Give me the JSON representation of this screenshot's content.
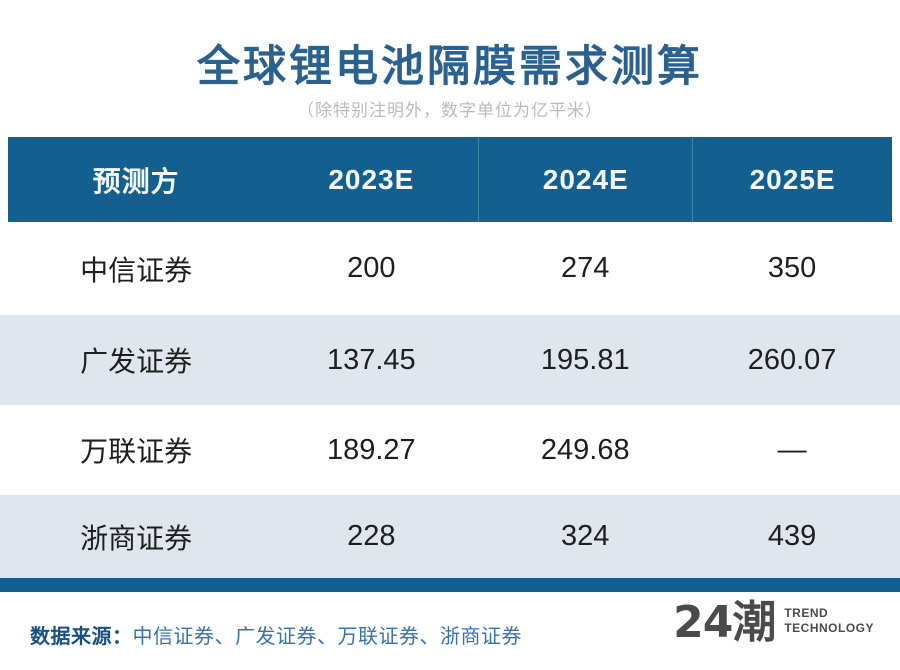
{
  "title": "全球锂电池隔膜需求测算",
  "subtitle": "（除特别注明外，数字单位为亿平米）",
  "table": {
    "headers": [
      "预测方",
      "2023E",
      "2024E",
      "2025E"
    ],
    "rows": [
      {
        "name": "中信证券",
        "values": [
          "200",
          "274",
          "350"
        ]
      },
      {
        "name": "广发证券",
        "values": [
          "137.45",
          "195.81",
          "260.07"
        ]
      },
      {
        "name": "万联证券",
        "values": [
          "189.27",
          "249.68",
          "—"
        ]
      },
      {
        "name": "浙商证券",
        "values": [
          "228",
          "324",
          "439"
        ]
      }
    ]
  },
  "footer": {
    "source_label": "数据来源：",
    "source_text": "中信证券、广发证券、万联证券、浙商证券"
  },
  "logo": {
    "brand": "24潮",
    "tagline_line1": "TREND",
    "tagline_line2": "TECHNOLOGY"
  },
  "colors": {
    "header_bg": "#136090",
    "row_alt_bg": "#DFE6ED",
    "bottom_bar": "#12608F",
    "title_color": "#2B618F",
    "subtitle_color": "#BBBBBB",
    "body_text": "#1F1F1F",
    "footer_label": "#1A5180",
    "footer_text": "#3A73A8",
    "logo_color": "#4B4B4D"
  },
  "chart_data": {
    "type": "table",
    "title": "全球锂电池隔膜需求测算",
    "unit_note": "除特别注明外，数字单位为亿平米",
    "columns": [
      "预测方",
      "2023E",
      "2024E",
      "2025E"
    ],
    "rows": [
      [
        "中信证券",
        "200",
        "274",
        "350"
      ],
      [
        "广发证券",
        "137.45",
        "195.81",
        "260.07"
      ],
      [
        "万联证券",
        "189.27",
        "249.68",
        "—"
      ],
      [
        "浙商证券",
        "228",
        "324",
        "439"
      ]
    ],
    "source": "中信证券、广发证券、万联证券、浙商证券"
  }
}
